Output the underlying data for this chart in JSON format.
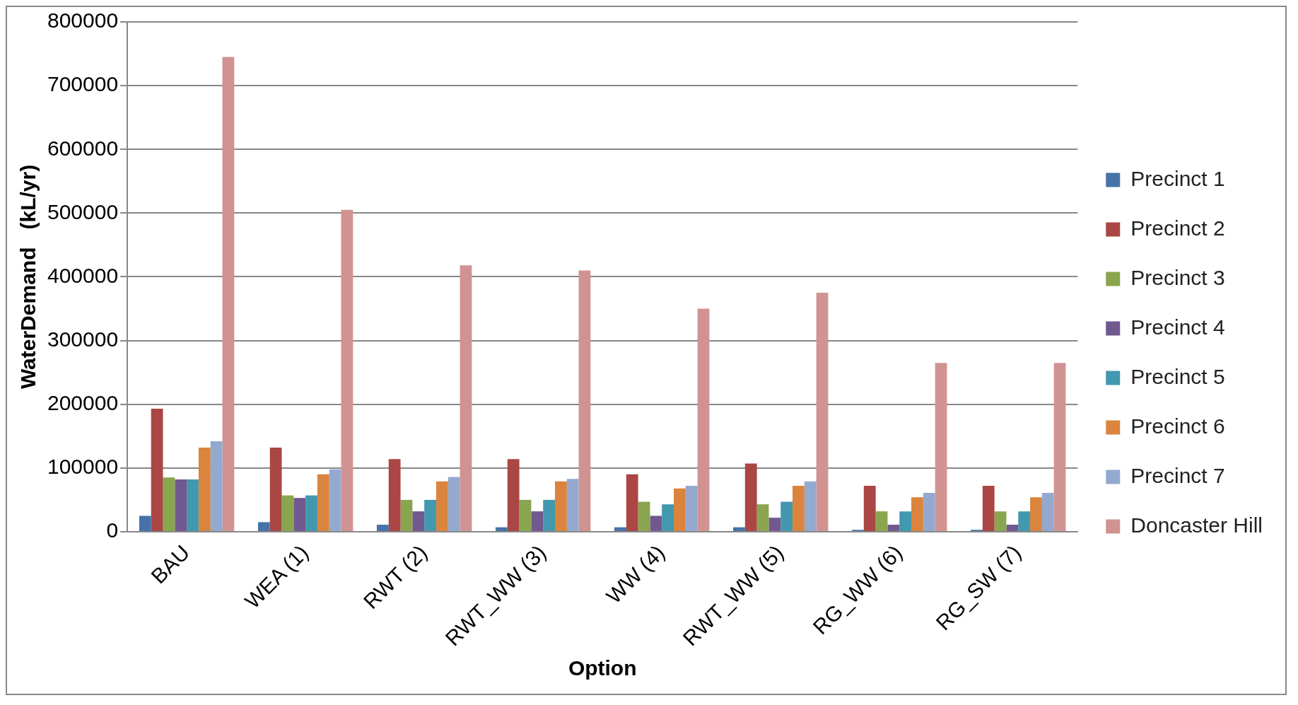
{
  "chart_data": {
    "type": "bar",
    "xlabel": "Option",
    "ylabel": "WaterDemand   (kL/yr)",
    "categories": [
      "BAU",
      "WEA (1)",
      "RWT (2)",
      "RWT_WW (3)",
      "WW (4)",
      "RWT_WW (5)",
      "RG_WW (6)",
      "RG_SW (7)"
    ],
    "series": [
      {
        "name": "Precinct 1",
        "color": "#4572a7",
        "values": [
          25000,
          15000,
          11000,
          7000,
          7000,
          7000,
          3000,
          3000
        ]
      },
      {
        "name": "Precinct 2",
        "color": "#aa4643",
        "values": [
          193000,
          132000,
          114000,
          114000,
          90000,
          107000,
          72000,
          72000
        ]
      },
      {
        "name": "Precinct 3",
        "color": "#89a54e",
        "values": [
          85000,
          57000,
          50000,
          50000,
          47000,
          43000,
          32000,
          32000
        ]
      },
      {
        "name": "Precinct 4",
        "color": "#71588f",
        "values": [
          82000,
          53000,
          32000,
          32000,
          25000,
          22000,
          11000,
          11000
        ]
      },
      {
        "name": "Precinct 5",
        "color": "#4198af",
        "values": [
          82000,
          57000,
          50000,
          50000,
          43000,
          47000,
          32000,
          32000
        ]
      },
      {
        "name": "Precinct 6",
        "color": "#db843d",
        "values": [
          132000,
          90000,
          79000,
          79000,
          68000,
          72000,
          54000,
          54000
        ]
      },
      {
        "name": "Precinct 7",
        "color": "#93a9cf",
        "values": [
          142000,
          98000,
          86000,
          83000,
          72000,
          79000,
          61000,
          61000
        ]
      },
      {
        "name": "Doncaster Hill",
        "color": "#d19392",
        "values": [
          745000,
          505000,
          418000,
          410000,
          350000,
          375000,
          265000,
          265000
        ]
      }
    ],
    "ylim": [
      0,
      800000
    ],
    "yticks": [
      0,
      100000,
      200000,
      300000,
      400000,
      500000,
      600000,
      700000,
      800000
    ],
    "grid": "y",
    "legend": "right"
  }
}
